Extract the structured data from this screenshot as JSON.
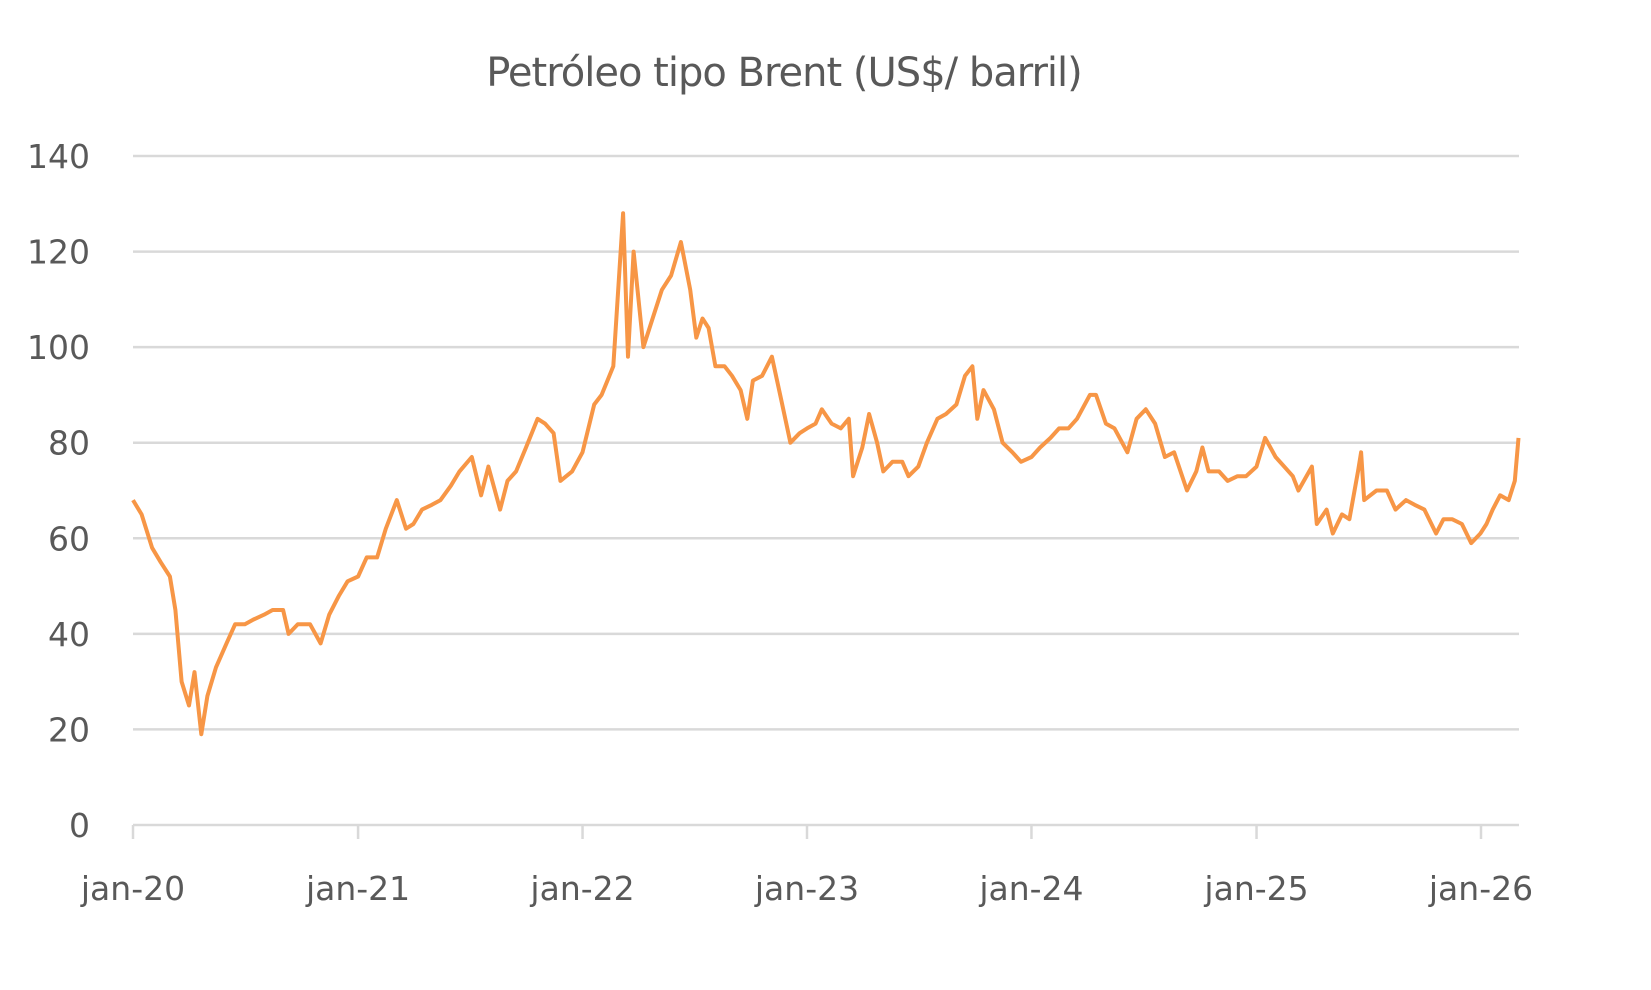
{
  "chart_data": {
    "type": "line",
    "title": "Petróleo tipo Brent (US$/ barril)",
    "xlabel": "",
    "ylabel": "",
    "ylim": [
      0,
      140
    ],
    "yticks": [
      "0",
      "20",
      "40",
      "60",
      "80",
      "100",
      "120",
      "140"
    ],
    "xlim": [
      "2020-01-01",
      "2026-03-03"
    ],
    "xticks": [
      {
        "date": "2020-01-01",
        "label": "jan-20"
      },
      {
        "date": "2021-01-01",
        "label": "jan-21"
      },
      {
        "date": "2022-01-01",
        "label": "jan-22"
      },
      {
        "date": "2023-01-01",
        "label": "jan-23"
      },
      {
        "date": "2024-01-01",
        "label": "jan-24"
      },
      {
        "date": "2025-01-01",
        "label": "jan-25"
      },
      {
        "date": "2026-01-01",
        "label": "jan-26"
      }
    ],
    "grid": true,
    "legend": "none",
    "line_color": "#F79646",
    "grid_color": "#D9D9D9",
    "series": [
      {
        "points": [
          [
            "2020-01-01",
            68
          ],
          [
            "2020-01-15",
            65
          ],
          [
            "2020-02-01",
            58
          ],
          [
            "2020-02-15",
            55
          ],
          [
            "2020-03-01",
            52
          ],
          [
            "2020-03-10",
            45
          ],
          [
            "2020-03-20",
            30
          ],
          [
            "2020-04-01",
            25
          ],
          [
            "2020-04-10",
            32
          ],
          [
            "2020-04-21",
            19
          ],
          [
            "2020-05-01",
            27
          ],
          [
            "2020-05-15",
            33
          ],
          [
            "2020-06-01",
            38
          ],
          [
            "2020-06-15",
            42
          ],
          [
            "2020-07-01",
            42
          ],
          [
            "2020-07-15",
            43
          ],
          [
            "2020-08-01",
            44
          ],
          [
            "2020-08-15",
            45
          ],
          [
            "2020-09-01",
            45
          ],
          [
            "2020-09-10",
            40
          ],
          [
            "2020-09-25",
            42
          ],
          [
            "2020-10-15",
            42
          ],
          [
            "2020-11-01",
            38
          ],
          [
            "2020-11-15",
            44
          ],
          [
            "2020-12-01",
            48
          ],
          [
            "2020-12-15",
            51
          ],
          [
            "2021-01-01",
            52
          ],
          [
            "2021-01-15",
            56
          ],
          [
            "2021-02-01",
            56
          ],
          [
            "2021-02-15",
            62
          ],
          [
            "2021-03-05",
            68
          ],
          [
            "2021-03-20",
            62
          ],
          [
            "2021-04-01",
            63
          ],
          [
            "2021-04-15",
            66
          ],
          [
            "2021-05-01",
            67
          ],
          [
            "2021-05-15",
            68
          ],
          [
            "2021-06-01",
            71
          ],
          [
            "2021-06-15",
            74
          ],
          [
            "2021-07-05",
            77
          ],
          [
            "2021-07-20",
            69
          ],
          [
            "2021-08-01",
            75
          ],
          [
            "2021-08-20",
            66
          ],
          [
            "2021-09-01",
            72
          ],
          [
            "2021-09-15",
            74
          ],
          [
            "2021-10-01",
            79
          ],
          [
            "2021-10-20",
            85
          ],
          [
            "2021-11-01",
            84
          ],
          [
            "2021-11-15",
            82
          ],
          [
            "2021-11-26",
            72
          ],
          [
            "2021-12-15",
            74
          ],
          [
            "2022-01-01",
            78
          ],
          [
            "2022-01-20",
            88
          ],
          [
            "2022-02-01",
            90
          ],
          [
            "2022-02-20",
            96
          ],
          [
            "2022-03-08",
            128
          ],
          [
            "2022-03-16",
            98
          ],
          [
            "2022-03-25",
            120
          ],
          [
            "2022-04-10",
            100
          ],
          [
            "2022-04-25",
            106
          ],
          [
            "2022-05-10",
            112
          ],
          [
            "2022-05-25",
            115
          ],
          [
            "2022-06-10",
            122
          ],
          [
            "2022-06-25",
            112
          ],
          [
            "2022-07-05",
            102
          ],
          [
            "2022-07-15",
            106
          ],
          [
            "2022-07-25",
            104
          ],
          [
            "2022-08-05",
            96
          ],
          [
            "2022-08-20",
            96
          ],
          [
            "2022-09-01",
            94
          ],
          [
            "2022-09-15",
            91
          ],
          [
            "2022-09-26",
            85
          ],
          [
            "2022-10-05",
            93
          ],
          [
            "2022-10-20",
            94
          ],
          [
            "2022-11-05",
            98
          ],
          [
            "2022-11-20",
            89
          ],
          [
            "2022-12-05",
            80
          ],
          [
            "2022-12-20",
            82
          ],
          [
            "2023-01-01",
            83
          ],
          [
            "2023-01-15",
            84
          ],
          [
            "2023-01-25",
            87
          ],
          [
            "2023-02-10",
            84
          ],
          [
            "2023-02-25",
            83
          ],
          [
            "2023-03-10",
            85
          ],
          [
            "2023-03-17",
            73
          ],
          [
            "2023-04-01",
            79
          ],
          [
            "2023-04-12",
            86
          ],
          [
            "2023-04-25",
            80
          ],
          [
            "2023-05-05",
            74
          ],
          [
            "2023-05-20",
            76
          ],
          [
            "2023-06-05",
            76
          ],
          [
            "2023-06-15",
            73
          ],
          [
            "2023-07-01",
            75
          ],
          [
            "2023-07-15",
            80
          ],
          [
            "2023-08-01",
            85
          ],
          [
            "2023-08-15",
            86
          ],
          [
            "2023-09-01",
            88
          ],
          [
            "2023-09-15",
            94
          ],
          [
            "2023-09-27",
            96
          ],
          [
            "2023-10-05",
            85
          ],
          [
            "2023-10-15",
            91
          ],
          [
            "2023-11-01",
            87
          ],
          [
            "2023-11-15",
            80
          ],
          [
            "2023-12-01",
            78
          ],
          [
            "2023-12-15",
            76
          ],
          [
            "2024-01-01",
            77
          ],
          [
            "2024-01-15",
            79
          ],
          [
            "2024-02-01",
            81
          ],
          [
            "2024-02-15",
            83
          ],
          [
            "2024-03-01",
            83
          ],
          [
            "2024-03-15",
            85
          ],
          [
            "2024-04-05",
            90
          ],
          [
            "2024-04-15",
            90
          ],
          [
            "2024-05-01",
            84
          ],
          [
            "2024-05-15",
            83
          ],
          [
            "2024-06-05",
            78
          ],
          [
            "2024-06-20",
            85
          ],
          [
            "2024-07-05",
            87
          ],
          [
            "2024-07-20",
            84
          ],
          [
            "2024-08-05",
            77
          ],
          [
            "2024-08-20",
            78
          ],
          [
            "2024-09-10",
            70
          ],
          [
            "2024-09-25",
            74
          ],
          [
            "2024-10-05",
            79
          ],
          [
            "2024-10-15",
            74
          ],
          [
            "2024-11-01",
            74
          ],
          [
            "2024-11-15",
            72
          ],
          [
            "2024-12-01",
            73
          ],
          [
            "2024-12-15",
            73
          ],
          [
            "2025-01-01",
            75
          ],
          [
            "2025-01-15",
            81
          ],
          [
            "2025-02-01",
            77
          ],
          [
            "2025-02-15",
            75
          ],
          [
            "2025-03-01",
            73
          ],
          [
            "2025-03-10",
            70
          ],
          [
            "2025-04-01",
            75
          ],
          [
            "2025-04-09",
            63
          ],
          [
            "2025-04-25",
            66
          ],
          [
            "2025-05-05",
            61
          ],
          [
            "2025-05-20",
            65
          ],
          [
            "2025-06-01",
            64
          ],
          [
            "2025-06-15",
            74
          ],
          [
            "2025-06-20",
            78
          ],
          [
            "2025-06-25",
            68
          ],
          [
            "2025-07-15",
            70
          ],
          [
            "2025-08-01",
            70
          ],
          [
            "2025-08-15",
            66
          ],
          [
            "2025-09-01",
            68
          ],
          [
            "2025-09-15",
            67
          ],
          [
            "2025-10-01",
            66
          ],
          [
            "2025-10-20",
            61
          ],
          [
            "2025-11-01",
            64
          ],
          [
            "2025-11-15",
            64
          ],
          [
            "2025-12-01",
            63
          ],
          [
            "2025-12-16",
            59
          ],
          [
            "2025-12-31",
            61
          ],
          [
            "2026-01-10",
            63
          ],
          [
            "2026-01-20",
            66
          ],
          [
            "2026-02-01",
            69
          ],
          [
            "2026-02-15",
            68
          ],
          [
            "2026-02-25",
            72
          ],
          [
            "2026-03-03",
            81
          ]
        ]
      }
    ]
  }
}
